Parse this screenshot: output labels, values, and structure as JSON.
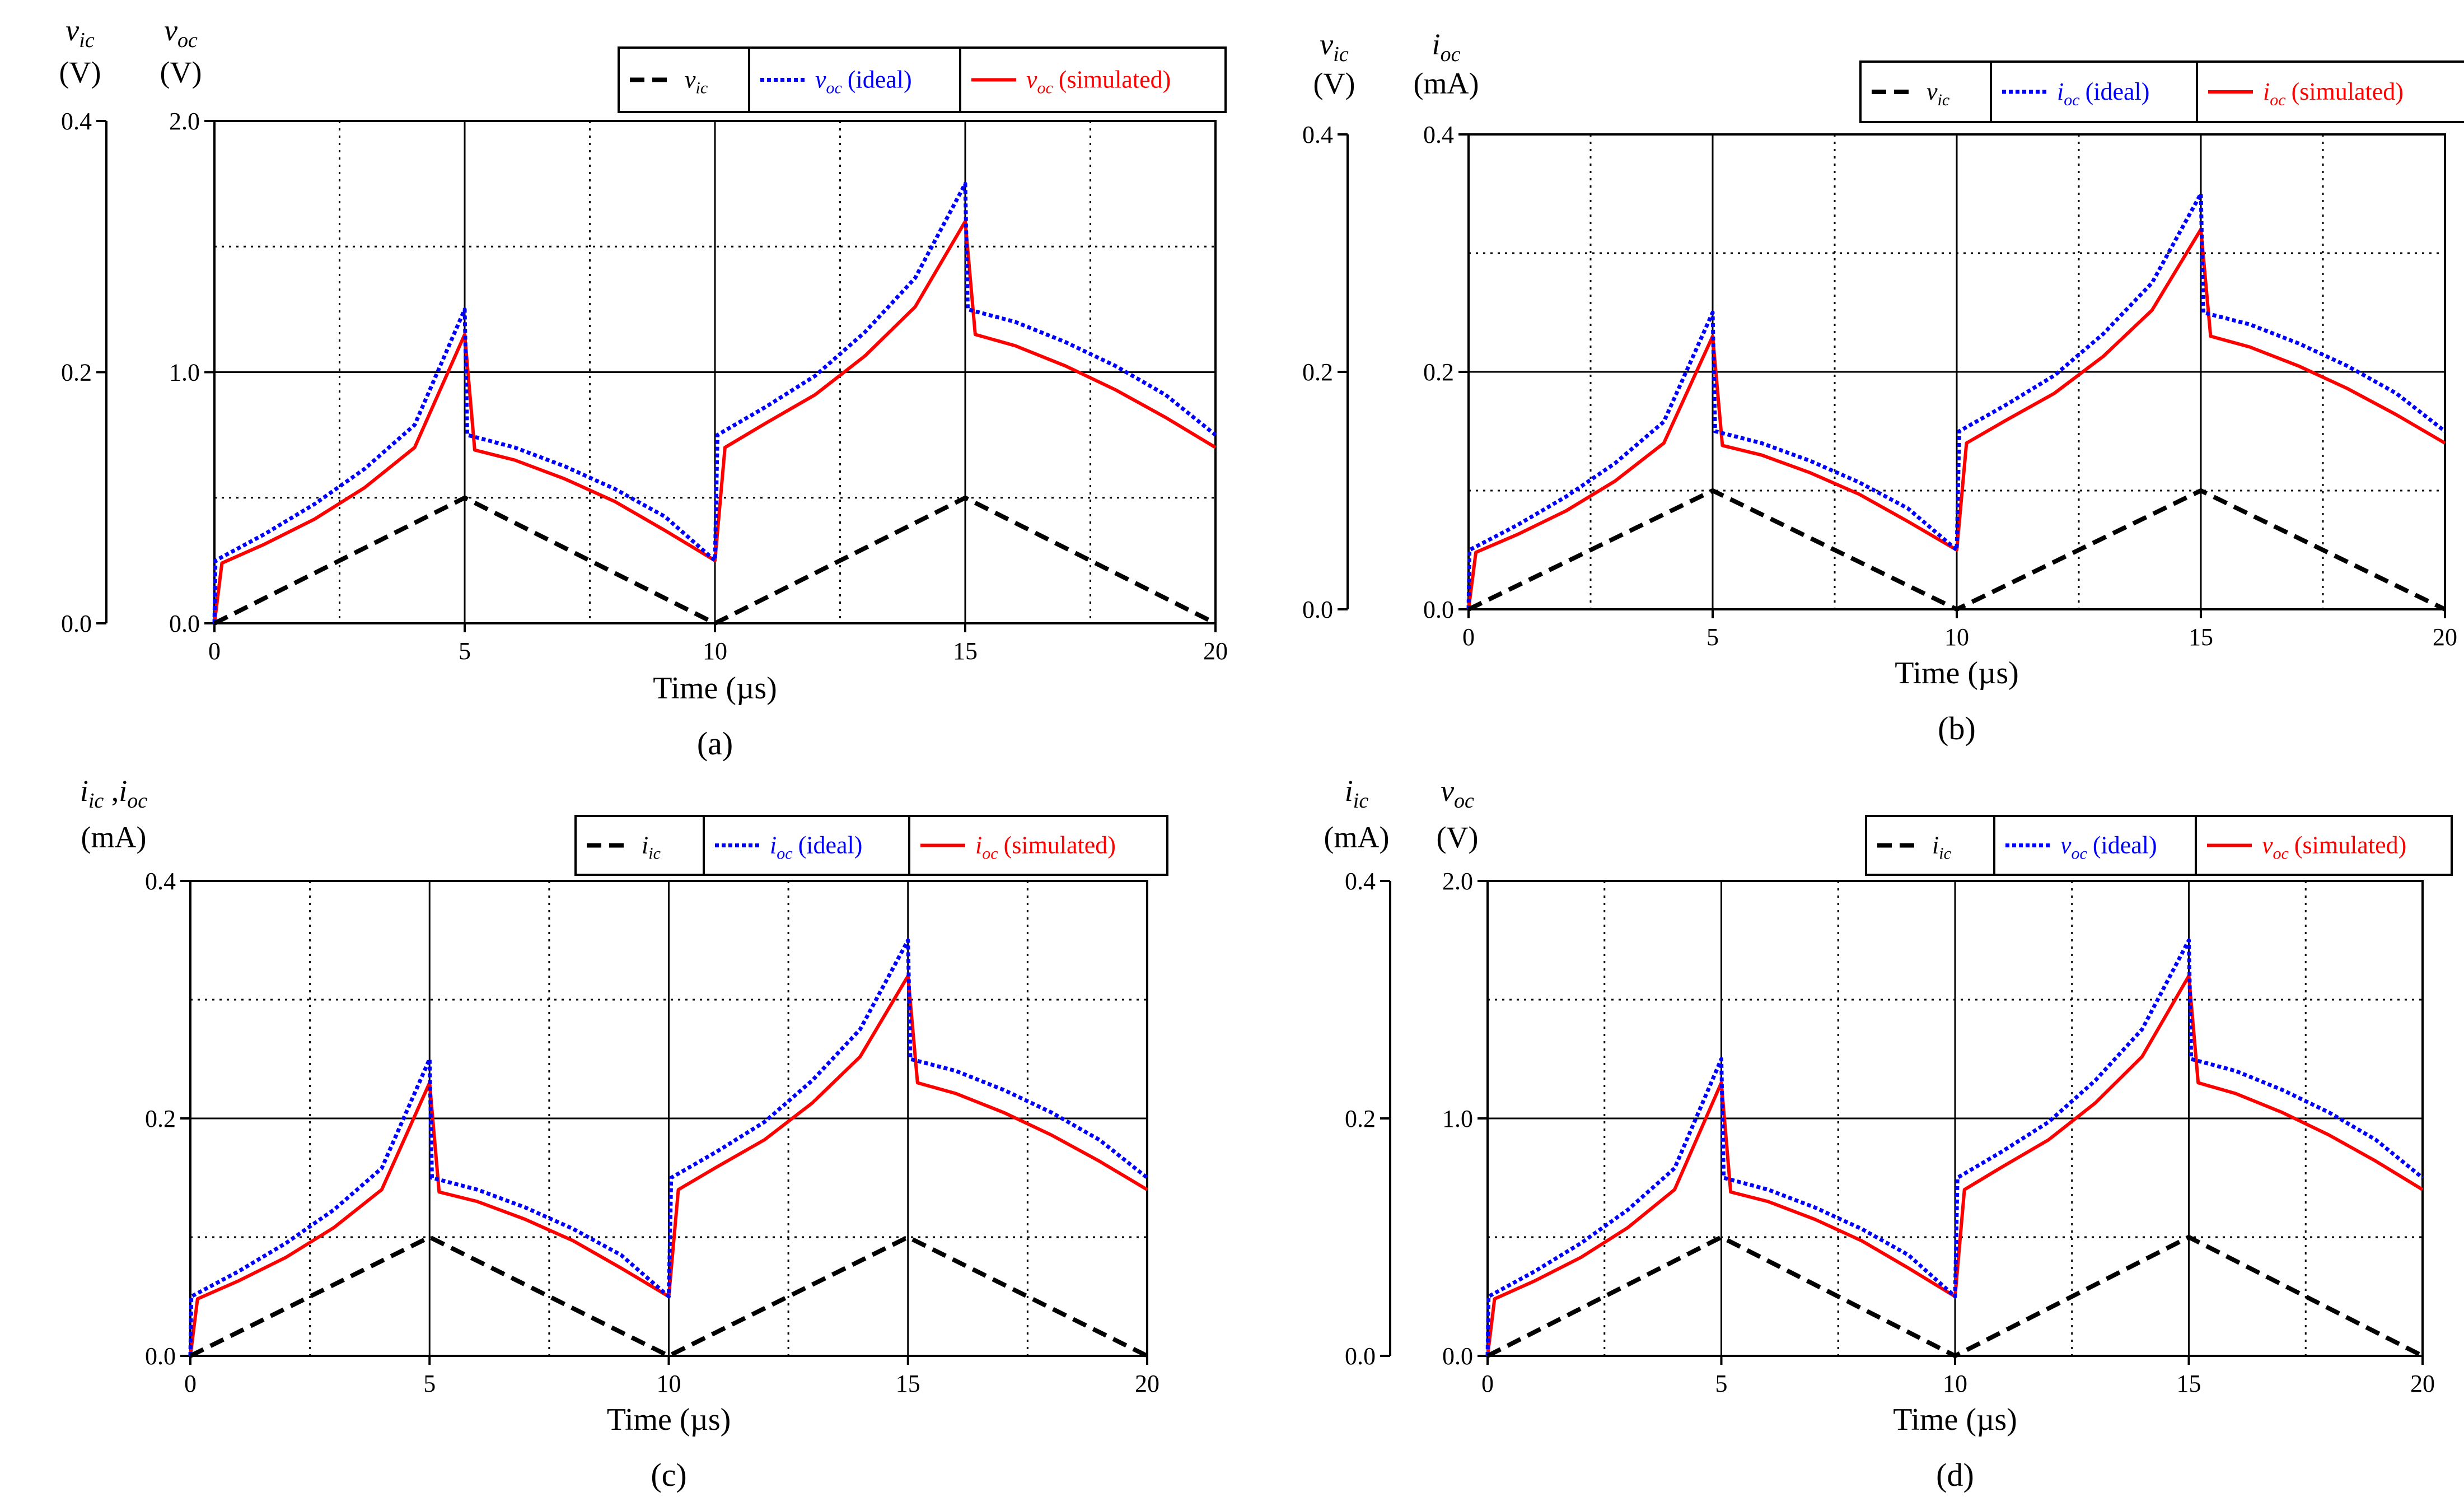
{
  "chart_data": [
    {
      "type": "line",
      "panel": "a",
      "panel_label": "(a)",
      "xlabel": "Time (µs)",
      "xlim": [
        0,
        20
      ],
      "xticks": [
        "0",
        "5",
        "10",
        "15",
        "20"
      ],
      "left_axis": {
        "symbol": "v",
        "sub": "ic",
        "unit": "(V)",
        "ylim": [
          0,
          0.4
        ],
        "ticks": [
          "0.0",
          "0.2",
          "0.4"
        ]
      },
      "right_axis": {
        "symbol": "v",
        "sub": "oc",
        "unit": "(V)",
        "ylim": [
          0,
          2.0
        ],
        "ticks": [
          "0.0",
          "1.0",
          "2.0"
        ]
      },
      "legend": [
        {
          "symbol": "v",
          "sub": "ic",
          "suffix": "",
          "style": "dashed",
          "color": "#000000"
        },
        {
          "symbol": "v",
          "sub": "oc",
          "suffix": "(ideal)",
          "style": "dotted",
          "color": "#0000ff"
        },
        {
          "symbol": "v",
          "sub": "oc",
          "suffix": "(simulated)",
          "style": "solid",
          "color": "#ff0000"
        }
      ],
      "series": [
        {
          "name": "v_ic",
          "axis": "left",
          "x": [
            0,
            5,
            10,
            15,
            20
          ],
          "y": [
            0,
            0.1,
            0,
            0.1,
            0
          ]
        },
        {
          "name": "v_oc (ideal)",
          "axis": "left",
          "x": [
            0,
            0.02,
            1,
            2,
            3,
            4,
            5,
            5.05,
            6,
            7,
            8,
            9,
            10,
            10.05,
            11,
            12,
            13,
            14,
            15,
            15.05,
            16,
            17,
            18,
            19,
            20
          ],
          "y": [
            0,
            0.05,
            0.071,
            0.095,
            0.123,
            0.158,
            0.25,
            0.15,
            0.14,
            0.125,
            0.107,
            0.085,
            0.05,
            0.15,
            0.172,
            0.197,
            0.232,
            0.275,
            0.35,
            0.25,
            0.24,
            0.224,
            0.205,
            0.182,
            0.15
          ]
        },
        {
          "name": "v_oc (simulated)",
          "axis": "left",
          "x": [
            0,
            0.15,
            1,
            2,
            3,
            4,
            5,
            5.2,
            6,
            7,
            8,
            9,
            10,
            10.2,
            11,
            12,
            13,
            14,
            15,
            15.2,
            16,
            17,
            18,
            19,
            20
          ],
          "y": [
            0,
            0.048,
            0.063,
            0.083,
            0.108,
            0.14,
            0.23,
            0.138,
            0.13,
            0.115,
            0.097,
            0.074,
            0.05,
            0.14,
            0.159,
            0.182,
            0.213,
            0.252,
            0.32,
            0.23,
            0.221,
            0.205,
            0.186,
            0.164,
            0.14
          ]
        }
      ]
    },
    {
      "type": "line",
      "panel": "b",
      "panel_label": "(b)",
      "xlabel": "Time (µs)",
      "xlim": [
        0,
        20
      ],
      "xticks": [
        "0",
        "5",
        "10",
        "15",
        "20"
      ],
      "left_axis": {
        "symbol": "v",
        "sub": "ic",
        "unit": "(V)",
        "ylim": [
          0,
          0.4
        ],
        "ticks": [
          "0.0",
          "0.2",
          "0.4"
        ]
      },
      "right_axis": {
        "symbol": "i",
        "sub": "oc",
        "unit": "(mA)",
        "ylim": [
          0,
          0.4
        ],
        "ticks": [
          "0.0",
          "0.2",
          "0.4"
        ]
      },
      "legend": [
        {
          "symbol": "v",
          "sub": "ic",
          "suffix": "",
          "style": "dashed",
          "color": "#000000"
        },
        {
          "symbol": "i",
          "sub": "oc",
          "suffix": "(ideal)",
          "style": "dotted",
          "color": "#0000ff"
        },
        {
          "symbol": "i",
          "sub": "oc",
          "suffix": "(simulated)",
          "style": "solid",
          "color": "#ff0000"
        }
      ],
      "series": [
        {
          "name": "v_ic",
          "axis": "left",
          "x": [
            0,
            5,
            10,
            15,
            20
          ],
          "y": [
            0,
            0.1,
            0,
            0.1,
            0
          ]
        },
        {
          "name": "i_oc (ideal)",
          "axis": "left",
          "x": [
            0,
            0.02,
            1,
            2,
            3,
            4,
            5,
            5.05,
            6,
            7,
            8,
            9,
            10,
            10.05,
            11,
            12,
            13,
            14,
            15,
            15.05,
            16,
            17,
            18,
            19,
            20
          ],
          "y": [
            0,
            0.05,
            0.071,
            0.095,
            0.123,
            0.158,
            0.25,
            0.15,
            0.14,
            0.125,
            0.107,
            0.085,
            0.05,
            0.15,
            0.172,
            0.197,
            0.232,
            0.275,
            0.35,
            0.25,
            0.24,
            0.224,
            0.205,
            0.182,
            0.15
          ]
        },
        {
          "name": "i_oc (simulated)",
          "axis": "left",
          "x": [
            0,
            0.15,
            1,
            2,
            3,
            4,
            5,
            5.2,
            6,
            7,
            8,
            9,
            10,
            10.2,
            11,
            12,
            13,
            14,
            15,
            15.2,
            16,
            17,
            18,
            19,
            20
          ],
          "y": [
            0,
            0.048,
            0.063,
            0.083,
            0.108,
            0.14,
            0.23,
            0.138,
            0.13,
            0.115,
            0.097,
            0.074,
            0.05,
            0.14,
            0.159,
            0.182,
            0.213,
            0.252,
            0.32,
            0.23,
            0.221,
            0.205,
            0.186,
            0.164,
            0.14
          ]
        }
      ]
    },
    {
      "type": "line",
      "panel": "c",
      "panel_label": "(c)",
      "xlabel": "Time (µs)",
      "xlim": [
        0,
        20
      ],
      "xticks": [
        "0",
        "5",
        "10",
        "15",
        "20"
      ],
      "left_axis": {
        "symbol": "i",
        "sub": "ic",
        "symbol2": "i",
        "sub2": "oc",
        "unit": "(mA)",
        "ylim": [
          0,
          0.4
        ],
        "ticks": [
          "0.0",
          "0.2",
          "0.4"
        ]
      },
      "legend": [
        {
          "symbol": "i",
          "sub": "ic",
          "suffix": "",
          "style": "dashed",
          "color": "#000000"
        },
        {
          "symbol": "i",
          "sub": "oc",
          "suffix": "(ideal)",
          "style": "dotted",
          "color": "#0000ff"
        },
        {
          "symbol": "i",
          "sub": "oc",
          "suffix": "(simulated)",
          "style": "solid",
          "color": "#ff0000"
        }
      ],
      "series": [
        {
          "name": "i_ic",
          "axis": "left",
          "x": [
            0,
            5,
            10,
            15,
            20
          ],
          "y": [
            0,
            0.1,
            0,
            0.1,
            0
          ]
        },
        {
          "name": "i_oc (ideal)",
          "axis": "left",
          "x": [
            0,
            0.02,
            1,
            2,
            3,
            4,
            5,
            5.05,
            6,
            7,
            8,
            9,
            10,
            10.05,
            11,
            12,
            13,
            14,
            15,
            15.05,
            16,
            17,
            18,
            19,
            20
          ],
          "y": [
            0,
            0.05,
            0.071,
            0.095,
            0.123,
            0.158,
            0.25,
            0.15,
            0.14,
            0.125,
            0.107,
            0.085,
            0.05,
            0.15,
            0.172,
            0.197,
            0.232,
            0.275,
            0.35,
            0.25,
            0.24,
            0.224,
            0.205,
            0.182,
            0.15
          ]
        },
        {
          "name": "i_oc (simulated)",
          "axis": "left",
          "x": [
            0,
            0.15,
            1,
            2,
            3,
            4,
            5,
            5.2,
            6,
            7,
            8,
            9,
            10,
            10.2,
            11,
            12,
            13,
            14,
            15,
            15.2,
            16,
            17,
            18,
            19,
            20
          ],
          "y": [
            0,
            0.048,
            0.063,
            0.083,
            0.108,
            0.14,
            0.23,
            0.138,
            0.13,
            0.115,
            0.097,
            0.074,
            0.05,
            0.14,
            0.159,
            0.182,
            0.213,
            0.252,
            0.32,
            0.23,
            0.221,
            0.205,
            0.186,
            0.164,
            0.14
          ]
        }
      ]
    },
    {
      "type": "line",
      "panel": "d",
      "panel_label": "(d)",
      "xlabel": "Time (µs)",
      "xlim": [
        0,
        20
      ],
      "xticks": [
        "0",
        "5",
        "10",
        "15",
        "20"
      ],
      "left_axis": {
        "symbol": "i",
        "sub": "ic",
        "unit": "(mA)",
        "ylim": [
          0,
          0.4
        ],
        "ticks": [
          "0.0",
          "0.2",
          "0.4"
        ]
      },
      "right_axis": {
        "symbol": "v",
        "sub": "oc",
        "unit": "(V)",
        "ylim": [
          0,
          2.0
        ],
        "ticks": [
          "0.0",
          "1.0",
          "2.0"
        ]
      },
      "legend": [
        {
          "symbol": "i",
          "sub": "ic",
          "suffix": "",
          "style": "dashed",
          "color": "#000000"
        },
        {
          "symbol": "v",
          "sub": "oc",
          "suffix": "(ideal)",
          "style": "dotted",
          "color": "#0000ff"
        },
        {
          "symbol": "v",
          "sub": "oc",
          "suffix": "(simulated)",
          "style": "solid",
          "color": "#ff0000"
        }
      ],
      "series": [
        {
          "name": "i_ic",
          "axis": "left",
          "x": [
            0,
            5,
            10,
            15,
            20
          ],
          "y": [
            0,
            0.1,
            0,
            0.1,
            0
          ]
        },
        {
          "name": "v_oc (ideal)",
          "axis": "left",
          "x": [
            0,
            0.02,
            1,
            2,
            3,
            4,
            5,
            5.05,
            6,
            7,
            8,
            9,
            10,
            10.05,
            11,
            12,
            13,
            14,
            15,
            15.05,
            16,
            17,
            18,
            19,
            20
          ],
          "y": [
            0,
            0.05,
            0.071,
            0.095,
            0.123,
            0.158,
            0.25,
            0.15,
            0.14,
            0.125,
            0.107,
            0.085,
            0.05,
            0.15,
            0.172,
            0.197,
            0.232,
            0.275,
            0.35,
            0.25,
            0.24,
            0.224,
            0.205,
            0.182,
            0.15
          ]
        },
        {
          "name": "v_oc (simulated)",
          "axis": "left",
          "x": [
            0,
            0.15,
            1,
            2,
            3,
            4,
            5,
            5.2,
            6,
            7,
            8,
            9,
            10,
            10.2,
            11,
            12,
            13,
            14,
            15,
            15.2,
            16,
            17,
            18,
            19,
            20
          ],
          "y": [
            0,
            0.048,
            0.063,
            0.083,
            0.108,
            0.14,
            0.23,
            0.138,
            0.13,
            0.115,
            0.097,
            0.074,
            0.05,
            0.14,
            0.159,
            0.182,
            0.213,
            0.252,
            0.32,
            0.23,
            0.221,
            0.205,
            0.186,
            0.164,
            0.14
          ]
        }
      ]
    }
  ]
}
